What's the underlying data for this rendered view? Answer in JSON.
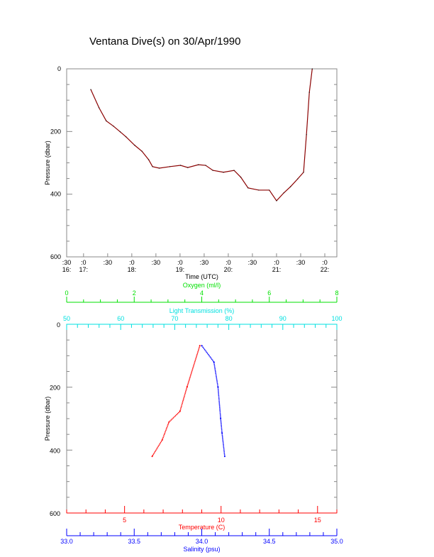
{
  "title": "Ventana Dive(s) on 30/Apr/1990",
  "chart_data": [
    {
      "type": "line",
      "title": "Ventana Dive(s) on 30/Apr/1990",
      "xlabel": "Time (UTC)",
      "ylabel": "Pressure (dbar)",
      "xlim_hours": [
        16.65,
        22.25
      ],
      "ylim": [
        600,
        0
      ],
      "x_tick_labels": [
        {
          "h": 16.5,
          "top": ":30",
          "bottom": "16:"
        },
        {
          "h": 17,
          "top": ":0",
          "bottom": "17:"
        },
        {
          "h": 17.5,
          "top": ":30",
          "bottom": ""
        },
        {
          "h": 18,
          "top": ":0",
          "bottom": "18:"
        },
        {
          "h": 18.5,
          "top": ":30",
          "bottom": ""
        },
        {
          "h": 19,
          "top": ":0",
          "bottom": "19:"
        },
        {
          "h": 19.5,
          "top": ":30",
          "bottom": ""
        },
        {
          "h": 20,
          "top": ":0",
          "bottom": "20:"
        },
        {
          "h": 20.5,
          "top": ":30",
          "bottom": ""
        },
        {
          "h": 21,
          "top": ":0",
          "bottom": "21:"
        },
        {
          "h": 21.5,
          "top": ":30",
          "bottom": ""
        },
        {
          "h": 22,
          "top": ":0",
          "bottom": "22:"
        }
      ],
      "y_ticks": [
        "0",
        "200",
        "400",
        "600"
      ],
      "series": [
        {
          "name": "Pressure",
          "color": "#8b0000",
          "x": [
            17.15,
            17.32,
            17.47,
            17.62,
            17.76,
            17.88,
            18.06,
            18.21,
            18.35,
            18.43,
            18.57,
            18.79,
            19.01,
            19.16,
            19.38,
            19.53,
            19.68,
            19.9,
            20.12,
            20.26,
            20.41,
            20.63,
            20.85,
            21.0,
            21.15,
            21.29,
            21.44,
            21.56,
            21.62,
            21.68,
            21.74
          ],
          "y": [
            66,
            124,
            166,
            183,
            201,
            217,
            244,
            263,
            290,
            312,
            317,
            312,
            308,
            315,
            306,
            308,
            324,
            330,
            324,
            346,
            380,
            387,
            387,
            421,
            396,
            376,
            351,
            330,
            210,
            75,
            0
          ]
        }
      ]
    },
    {
      "type": "scatter",
      "ylabel": "Pressure (dbar)",
      "ylim": [
        600,
        0
      ],
      "y_ticks": [
        "0",
        "200",
        "400",
        "600"
      ],
      "axes": [
        {
          "label": "Oxygen (ml/l)",
          "color": "#00e000",
          "range": [
            0,
            8
          ],
          "ticks": [
            "0",
            "2",
            "4",
            "6",
            "8"
          ]
        },
        {
          "label": "Light Transmission (%)",
          "color": "#00e0e0",
          "range": [
            50,
            100
          ],
          "ticks": [
            "50",
            "60",
            "70",
            "80",
            "90",
            "100"
          ]
        },
        {
          "label": "Temperature (C)",
          "color": "#ff0000",
          "range": [
            2,
            16
          ],
          "ticks": [
            "5",
            "10",
            "15"
          ]
        },
        {
          "label": "Salinity (psu)",
          "color": "#0000ff",
          "range": [
            33.0,
            35.0
          ],
          "ticks": [
            "33.0",
            "33.5",
            "34.0",
            "34.5",
            "35.0"
          ]
        }
      ],
      "series": [
        {
          "name": "Temperature",
          "color": "#ff0000",
          "x": [
            8.9,
            8.24,
            7.87,
            7.3,
            6.95,
            6.43
          ],
          "y": [
            68,
            199,
            277,
            311,
            368,
            420
          ]
        },
        {
          "name": "Salinity",
          "color": "#0000ff",
          "x": [
            34.0,
            34.09,
            34.12,
            34.14,
            34.15,
            34.17
          ],
          "y": [
            68,
            120,
            199,
            300,
            345,
            420
          ]
        }
      ]
    }
  ]
}
